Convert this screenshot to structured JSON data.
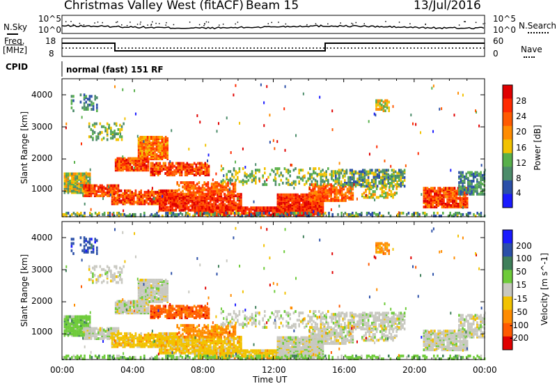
{
  "header": {
    "station": "Christmas Valley West (fitACF)",
    "beam": "Beam 15",
    "date": "13/Jul/2016"
  },
  "noise_panel": {
    "left_label": "N.Sky",
    "left_ticks": [
      "10^5",
      "10^0"
    ],
    "right_label": "N.Search",
    "right_ticks": [
      "10^5",
      "10^0"
    ]
  },
  "freq_panel": {
    "left_label_1": "Freq.",
    "left_label_2": "[MHz]",
    "left_ticks": [
      "18",
      "8"
    ],
    "right_label": "Nave",
    "right_ticks": [
      "60",
      "0"
    ]
  },
  "cpid": {
    "label": "CPID",
    "mode": "normal (fast) 151 RF"
  },
  "colors": {
    "power_scale": [
      "#1a1aff",
      "#2b4fa8",
      "#4c8c6a",
      "#58b04b",
      "#f2c200",
      "#ff8c00",
      "#ff5a00",
      "#ff2a00",
      "#e00000"
    ],
    "velocity_scale": [
      "#1a1aff",
      "#2b4fa8",
      "#3f7f5a",
      "#6ecb3a",
      "#c8c8c0",
      "#f2c200",
      "#ff8c00",
      "#ff5a00",
      "#e00000"
    ]
  },
  "chart_data": [
    {
      "type": "heatmap",
      "name": "power",
      "ylabel": "Slant Range [km]",
      "yticks": [
        "1000",
        "2000",
        "3000",
        "4000"
      ],
      "ylim": [
        200,
        4500
      ],
      "xlim": [
        "00:00",
        "24:00"
      ],
      "colorbar_label": "Power [dB]",
      "colorbar_ticks": [
        "4",
        "8",
        "12",
        "16",
        "20",
        "24",
        "28"
      ]
    },
    {
      "type": "heatmap",
      "name": "velocity",
      "ylabel": "Slant Range [km]",
      "yticks": [
        "1000",
        "2000",
        "3000",
        "4000"
      ],
      "ylim": [
        200,
        4500
      ],
      "xlim": [
        "00:00",
        "24:00"
      ],
      "colorbar_label": "Velocity [m s^-1]",
      "colorbar_ticks": [
        "200",
        "100",
        "50",
        "15",
        "-15",
        "-50",
        "-100",
        "-200"
      ]
    }
  ],
  "time_axis": {
    "ticks": [
      "00:00",
      "04:00",
      "08:00",
      "12:00",
      "16:00",
      "20:00",
      "00:00"
    ],
    "label": "Time UT"
  }
}
